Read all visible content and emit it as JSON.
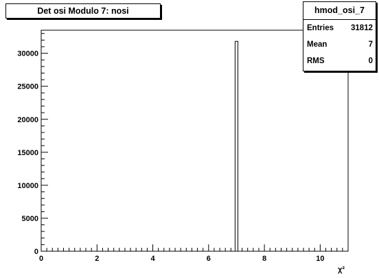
{
  "title": "Det osi Modulo 7: nosi",
  "stats": {
    "name": "hmod_osi_7",
    "rows": [
      {
        "label": "Entries",
        "value": "31812"
      },
      {
        "label": "Mean",
        "value": "7"
      },
      {
        "label": "RMS",
        "value": "0"
      }
    ]
  },
  "chart_data": {
    "type": "bar",
    "title": "Det osi Modulo 7: nosi",
    "xlabel": "χ²",
    "ylabel": "",
    "xlim": [
      0,
      11
    ],
    "ylim": [
      0,
      33500
    ],
    "x_ticks": [
      0,
      2,
      4,
      6,
      8,
      10
    ],
    "y_ticks": [
      0,
      5000,
      10000,
      15000,
      20000,
      25000,
      30000
    ],
    "bins": [
      {
        "x_low": 6.95,
        "x_high": 7.05,
        "value": 31812
      }
    ],
    "grid": false
  }
}
